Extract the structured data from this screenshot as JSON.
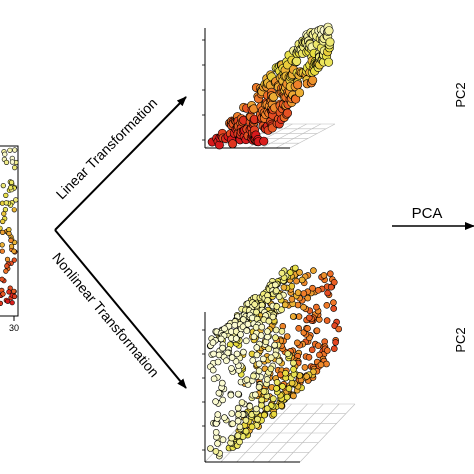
{
  "labels": {
    "linear": "Linear Transformation",
    "nonlinear": "Nonlinear Transformation",
    "pca": "PCA",
    "pc2_top": "PC2",
    "pc2_bottom": "PC2",
    "left_tick": "30"
  },
  "colors": {
    "red": "#d7191c",
    "orange": "#f07a28",
    "yellow": "#e8e040",
    "pale": "#fafad0",
    "outline": "#000000",
    "axis": "#000000",
    "grid": "#bdbdbd"
  }
}
